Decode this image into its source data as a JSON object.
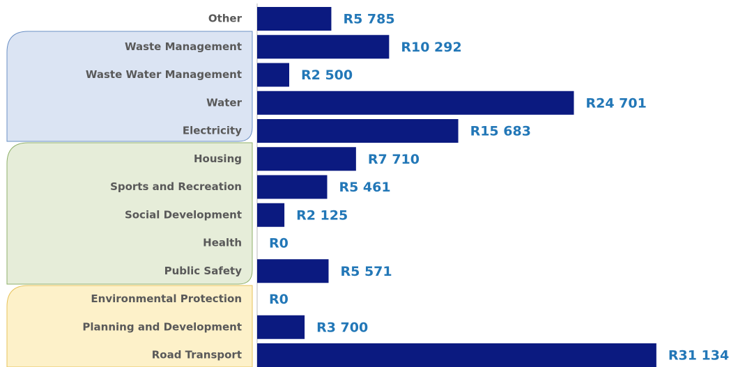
{
  "chart_data": {
    "type": "bar",
    "orientation": "horizontal",
    "categories": [
      "Other",
      "Waste Management",
      "Waste Water Management",
      "Water",
      "Electricity",
      "Housing",
      "Sports and Recreation",
      "Social Development",
      "Health",
      "Public Safety",
      "Environmental Protection",
      "Planning and Development",
      "Road Transport"
    ],
    "values": [
      5785,
      10292,
      2500,
      24701,
      15683,
      7710,
      5461,
      2125,
      0,
      5571,
      0,
      3700,
      31134
    ],
    "value_labels": [
      "R5 785",
      "R10 292",
      "R2 500",
      "R24 701",
      "R15 683",
      "R7 710",
      "R5 461",
      "R2 125",
      "R0",
      "R5 571",
      "R0",
      "R3 700",
      "R31 134"
    ],
    "color": "#0b1a80",
    "xlim": [
      0,
      35000
    ]
  }
}
